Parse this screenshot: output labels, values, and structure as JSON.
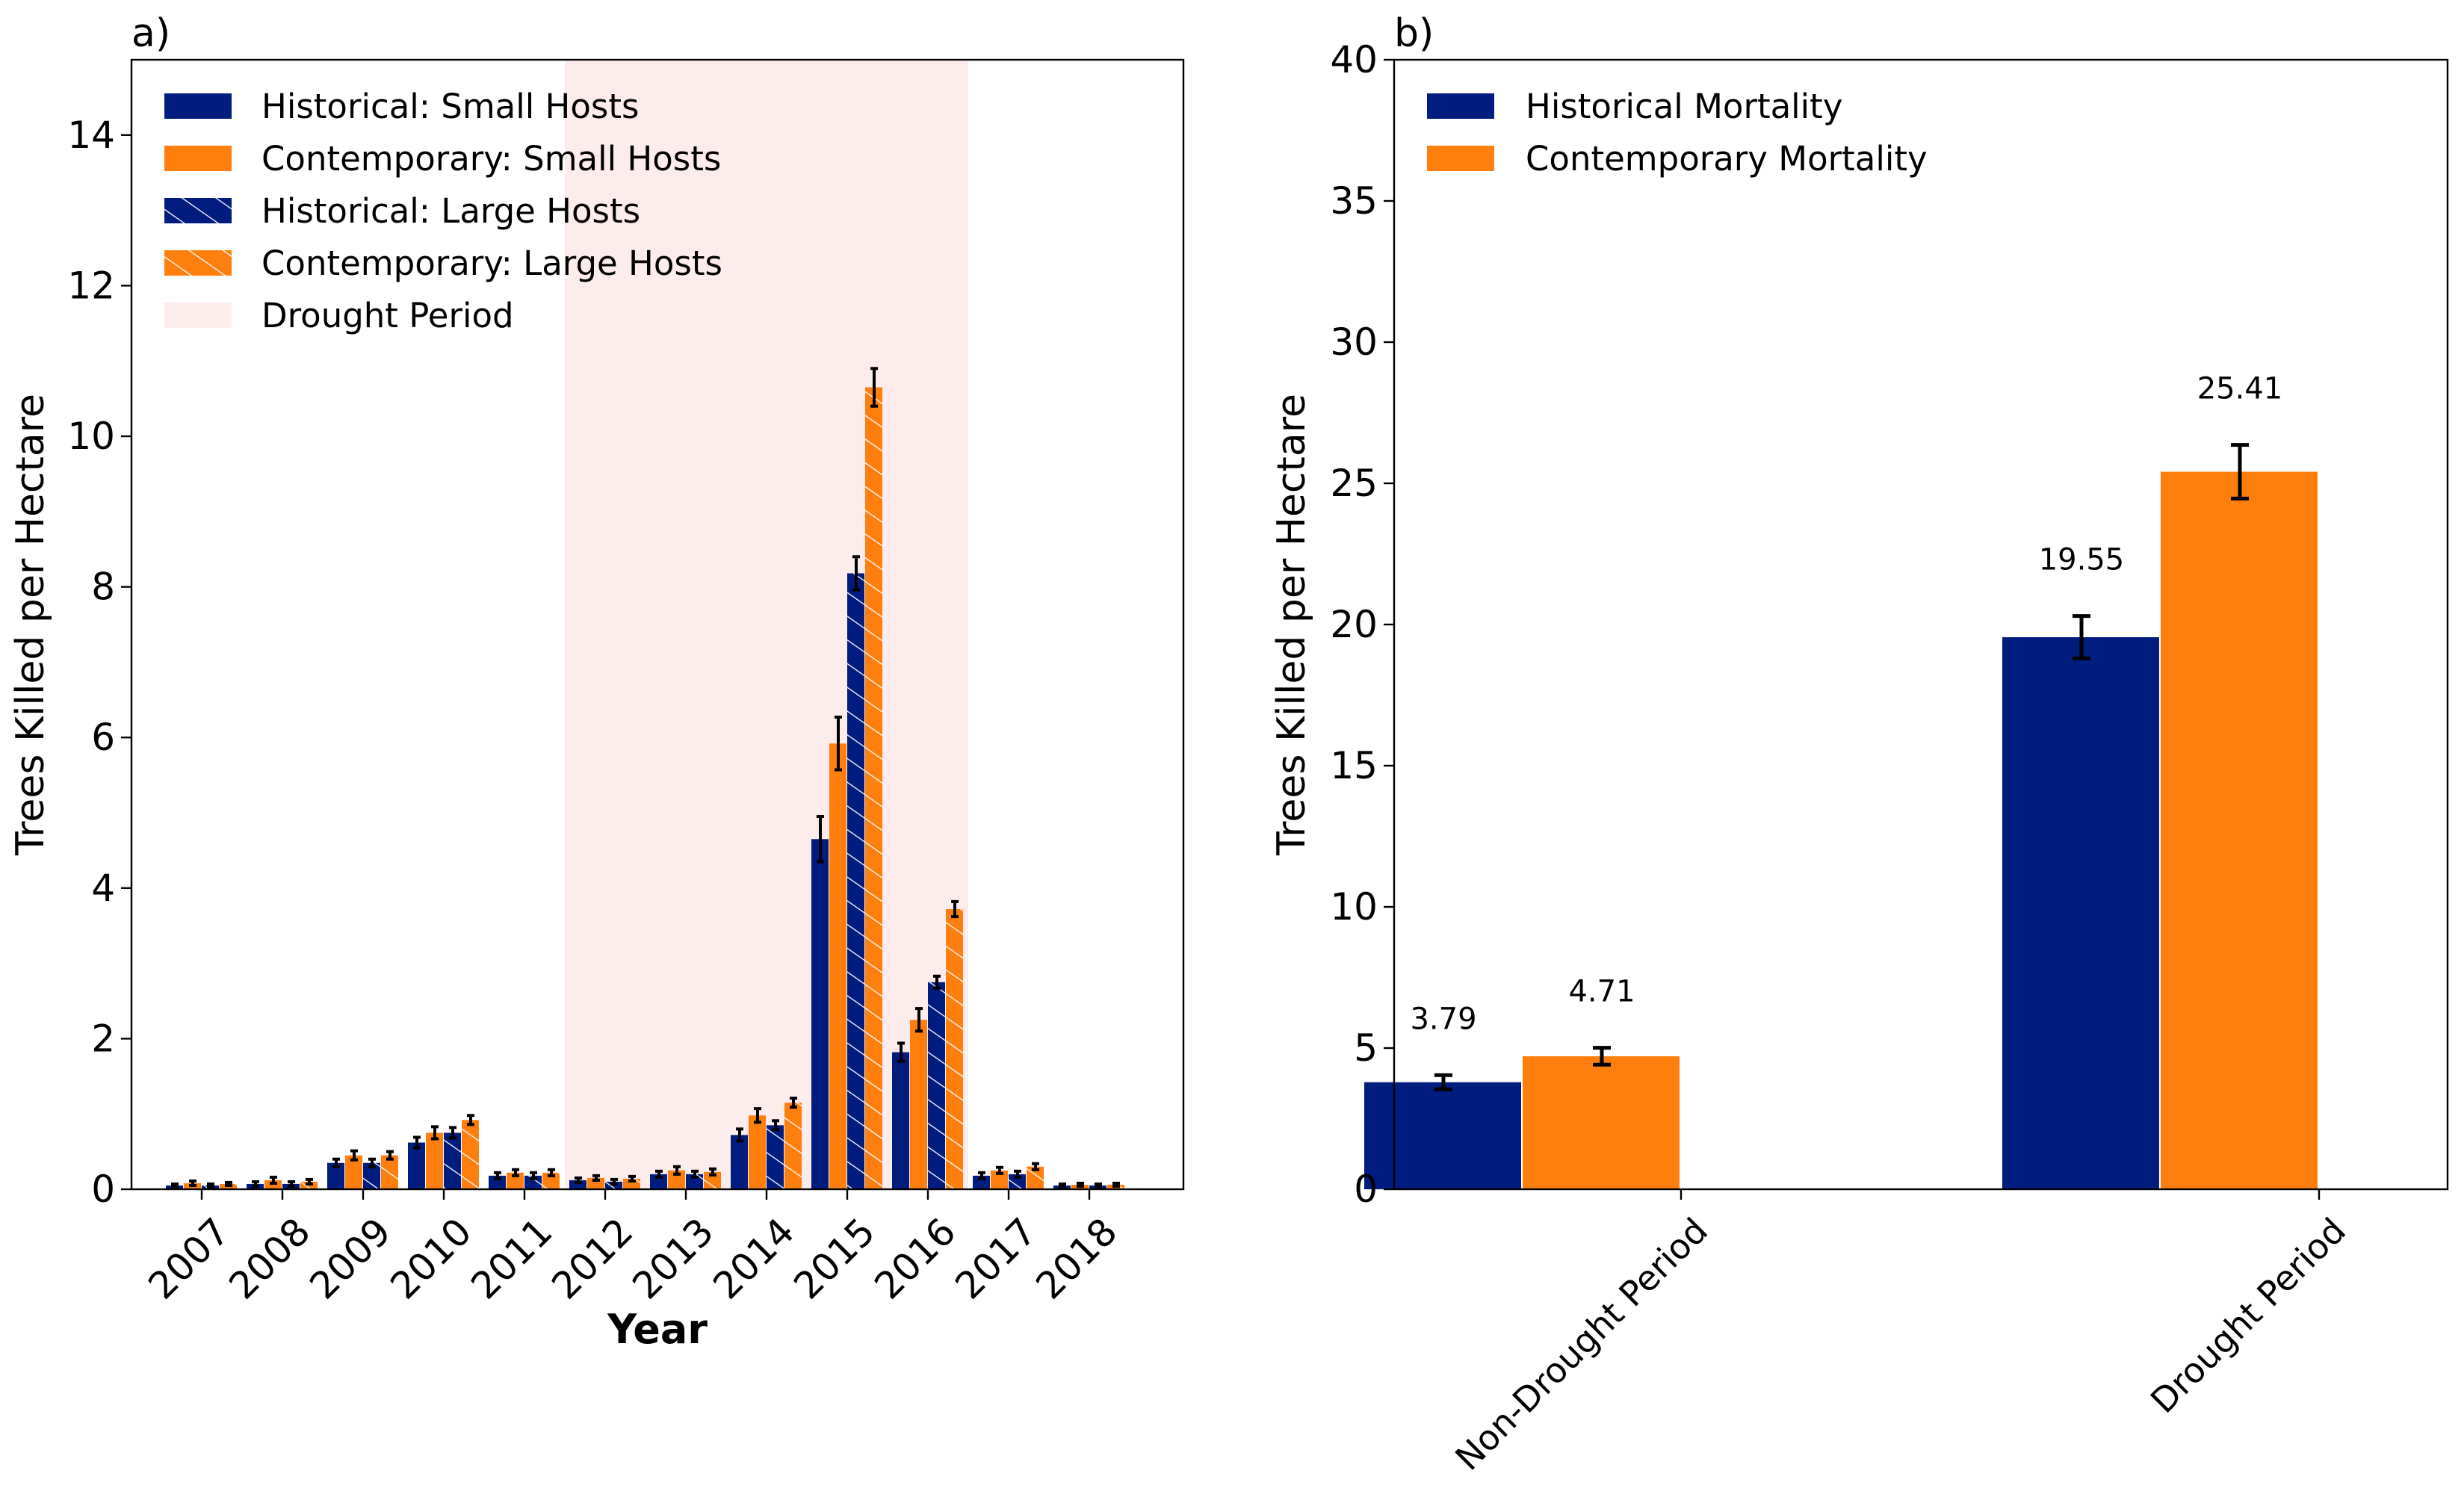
{
  "colors": {
    "historical": "#001c7f",
    "contemporary": "#ff7f0e",
    "drought": "#fdecec",
    "errorbar": "#000000"
  },
  "chart_data": [
    {
      "type": "bar",
      "panel_label": "a)",
      "xlabel": "Year",
      "ylabel": "Trees Killed per Hectare",
      "ylim": [
        0,
        15
      ],
      "yticks": [
        0,
        2,
        4,
        6,
        8,
        10,
        12,
        14
      ],
      "categories": [
        "2007",
        "2008",
        "2009",
        "2010",
        "2011",
        "2012",
        "2013",
        "2014",
        "2015",
        "2016",
        "2017",
        "2018"
      ],
      "drought_period": [
        "2012",
        "2016"
      ],
      "legend_position": "top-left",
      "legend": [
        {
          "label": "Historical: Small Hosts",
          "color": "historical",
          "hatch": false
        },
        {
          "label": "Contemporary: Small Hosts",
          "color": "contemporary",
          "hatch": false
        },
        {
          "label": "Historical: Large Hosts",
          "color": "historical",
          "hatch": true
        },
        {
          "label": "Contemporary: Large Hosts",
          "color": "contemporary",
          "hatch": true
        },
        {
          "label": "Drought Period",
          "color": "drought",
          "hatch": false
        }
      ],
      "series": [
        {
          "name": "Historical: Small Hosts",
          "color": "historical",
          "hatch": false,
          "values": [
            0.05,
            0.07,
            0.35,
            0.62,
            0.18,
            0.12,
            0.2,
            0.72,
            4.65,
            1.82,
            0.18,
            0.05
          ],
          "errors": [
            0.02,
            0.03,
            0.05,
            0.07,
            0.04,
            0.03,
            0.04,
            0.08,
            0.3,
            0.12,
            0.04,
            0.02
          ]
        },
        {
          "name": "Contemporary: Small Hosts",
          "color": "contemporary",
          "hatch": false,
          "values": [
            0.08,
            0.12,
            0.45,
            0.75,
            0.22,
            0.15,
            0.25,
            0.98,
            5.92,
            2.25,
            0.25,
            0.06
          ],
          "errors": [
            0.03,
            0.04,
            0.06,
            0.08,
            0.04,
            0.03,
            0.05,
            0.09,
            0.35,
            0.15,
            0.04,
            0.02
          ]
        },
        {
          "name": "Historical: Large Hosts",
          "color": "historical",
          "hatch": true,
          "values": [
            0.05,
            0.07,
            0.35,
            0.75,
            0.18,
            0.1,
            0.2,
            0.85,
            8.18,
            2.75,
            0.2,
            0.05
          ],
          "errors": [
            0.02,
            0.03,
            0.05,
            0.07,
            0.04,
            0.03,
            0.04,
            0.06,
            0.22,
            0.08,
            0.04,
            0.02
          ]
        },
        {
          "name": "Contemporary: Large Hosts",
          "color": "contemporary",
          "hatch": true,
          "values": [
            0.07,
            0.1,
            0.45,
            0.92,
            0.22,
            0.14,
            0.23,
            1.15,
            10.65,
            3.72,
            0.3,
            0.06
          ],
          "errors": [
            0.02,
            0.03,
            0.05,
            0.06,
            0.04,
            0.03,
            0.04,
            0.06,
            0.25,
            0.1,
            0.04,
            0.02
          ]
        }
      ]
    },
    {
      "type": "bar",
      "panel_label": "b)",
      "xlabel": "",
      "ylabel": "Trees Killed per Hectare",
      "ylim": [
        0,
        40
      ],
      "yticks": [
        0,
        5,
        10,
        15,
        20,
        25,
        30,
        35,
        40
      ],
      "categories": [
        "Non-Drought Period",
        "Drought Period"
      ],
      "legend_position": "top-left",
      "legend": [
        {
          "label": "Historical Mortality",
          "color": "historical"
        },
        {
          "label": "Contemporary Mortality",
          "color": "contemporary"
        }
      ],
      "series": [
        {
          "name": "Historical Mortality",
          "color": "historical",
          "values": [
            3.79,
            19.55
          ],
          "labels": [
            "3.79",
            "19.55"
          ],
          "errors": [
            0.25,
            0.75
          ]
        },
        {
          "name": "Contemporary Mortality",
          "color": "contemporary",
          "values": [
            4.71,
            25.41
          ],
          "labels": [
            "4.71",
            "25.41"
          ],
          "errors": [
            0.3,
            0.95
          ]
        }
      ]
    }
  ]
}
